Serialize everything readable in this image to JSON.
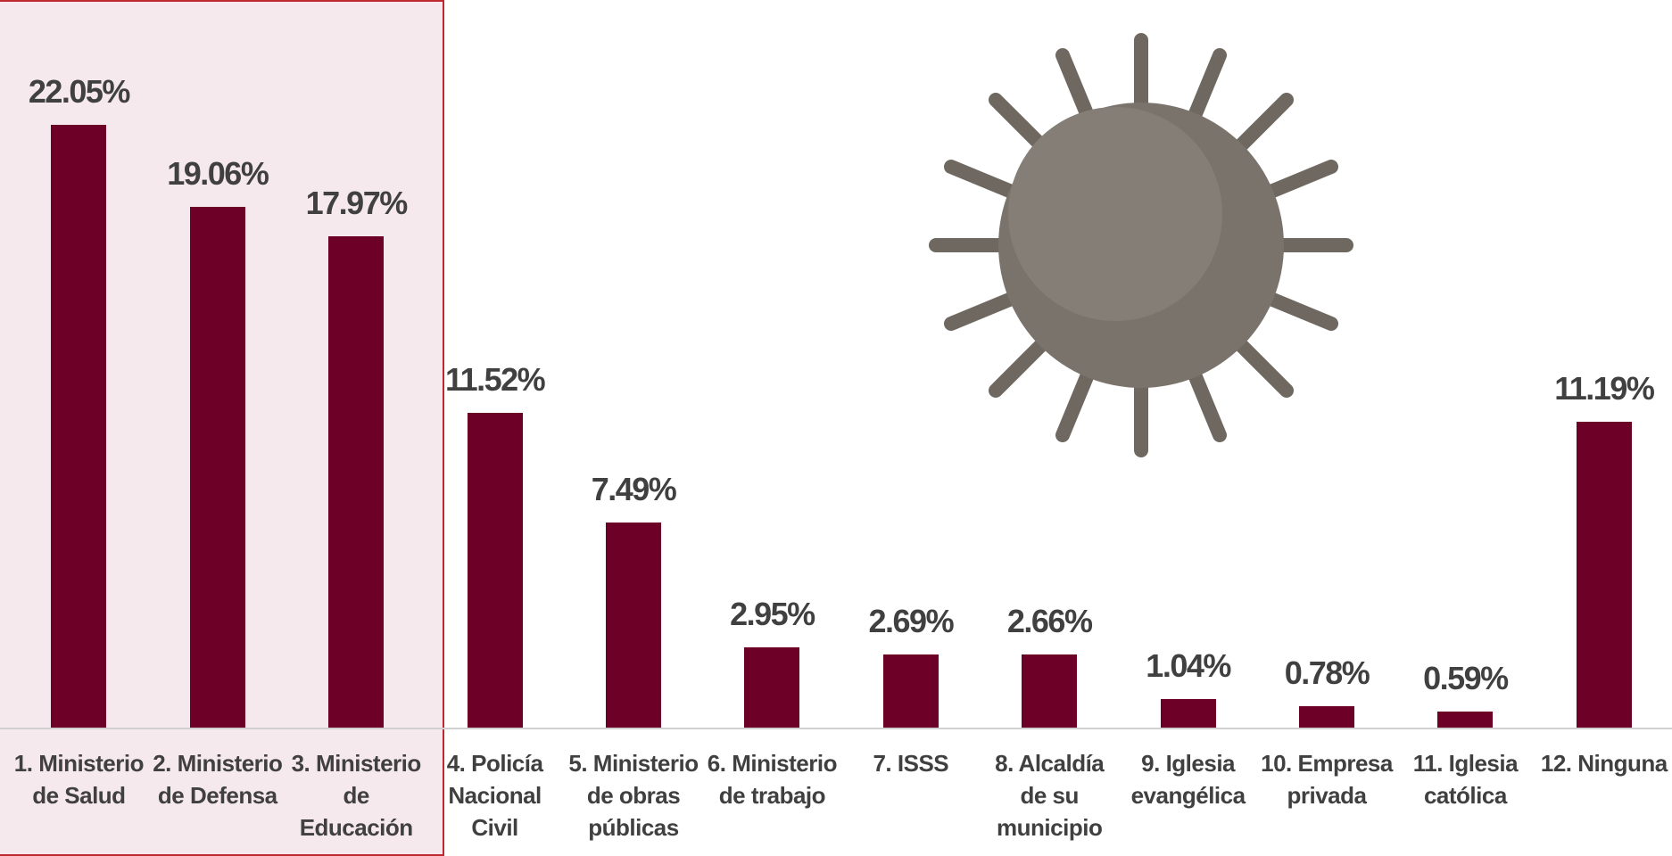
{
  "chart_data": {
    "type": "bar",
    "categories": [
      "1. Ministerio de Salud",
      "2. Ministerio de Defensa",
      "3. Ministerio de Educación",
      "4. Policía Nacional Civil",
      "5. Ministerio de obras públicas",
      "6. Ministerio de trabajo",
      "7. ISSS",
      "8. Alcaldía de su municipio",
      "9. Iglesia evangélica",
      "10. Empresa privada",
      "11. Iglesia católica",
      "12. Ninguna"
    ],
    "values": [
      22.05,
      19.06,
      17.97,
      11.52,
      7.49,
      2.95,
      2.69,
      2.66,
      1.04,
      0.78,
      0.59,
      11.19
    ],
    "value_labels": [
      "22.05%",
      "19.06%",
      "17.97%",
      "11.52%",
      "7.49%",
      "2.95%",
      "2.69%",
      "2.66%",
      "1.04%",
      "0.78%",
      "0.59%",
      "11.19%"
    ],
    "color": "#6d0026"
  }
}
